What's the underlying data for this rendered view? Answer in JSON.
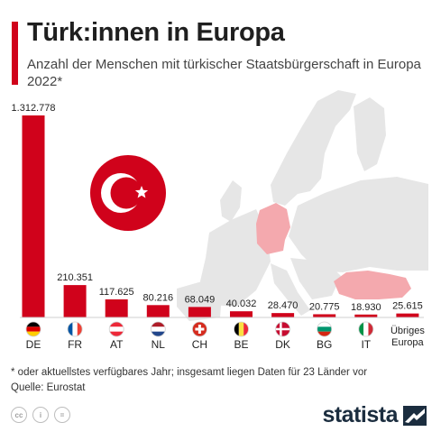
{
  "header": {
    "title": "Türk:innen in Europa",
    "subtitle": "Anzahl der Menschen mit türkischer Staatsbürgerschaft in Europa 2022*"
  },
  "colors": {
    "accent": "#d0021b",
    "bar": "#d0021b",
    "map_land": "#e6e6e6",
    "map_highlight": "#f4a9ae"
  },
  "chart_data": {
    "type": "bar",
    "title": "Türk:innen in Europa",
    "subtitle": "Anzahl der Menschen mit türkischer Staatsbürgerschaft in Europa 2022*",
    "categories": [
      "DE",
      "FR",
      "AT",
      "NL",
      "CH",
      "BE",
      "DK",
      "BG",
      "IT",
      "Übriges Europa"
    ],
    "values": [
      1312778,
      210351,
      117625,
      80216,
      68049,
      40032,
      28470,
      20775,
      18930,
      25615
    ],
    "value_labels": [
      "1.312.778",
      "210.351",
      "117.625",
      "80.216",
      "68.049",
      "40.032",
      "28.470",
      "20.775",
      "18.930",
      "25.615"
    ],
    "category_labels": [
      [
        "DE"
      ],
      [
        "FR"
      ],
      [
        "AT"
      ],
      [
        "NL"
      ],
      [
        "CH"
      ],
      [
        "BE"
      ],
      [
        "DK"
      ],
      [
        "BG"
      ],
      [
        "IT"
      ],
      [
        "Übriges",
        "Europa"
      ]
    ],
    "flag_icons": [
      "flag-de-icon",
      "flag-fr-icon",
      "flag-at-icon",
      "flag-nl-icon",
      "flag-ch-icon",
      "flag-be-icon",
      "flag-dk-icon",
      "flag-bg-icon",
      "flag-it-icon",
      ""
    ],
    "xlabel": "",
    "ylabel": "",
    "ylim": [
      0,
      1312778
    ],
    "grid": false
  },
  "footer": {
    "footnote_line1": "* oder aktuellstes verfügbares Jahr; insgesamt liegen Daten für 23 Länder vor",
    "footnote_line2": "Quelle: Eurostat",
    "brand": "statista",
    "license_icons": [
      "cc",
      "i",
      "="
    ]
  }
}
